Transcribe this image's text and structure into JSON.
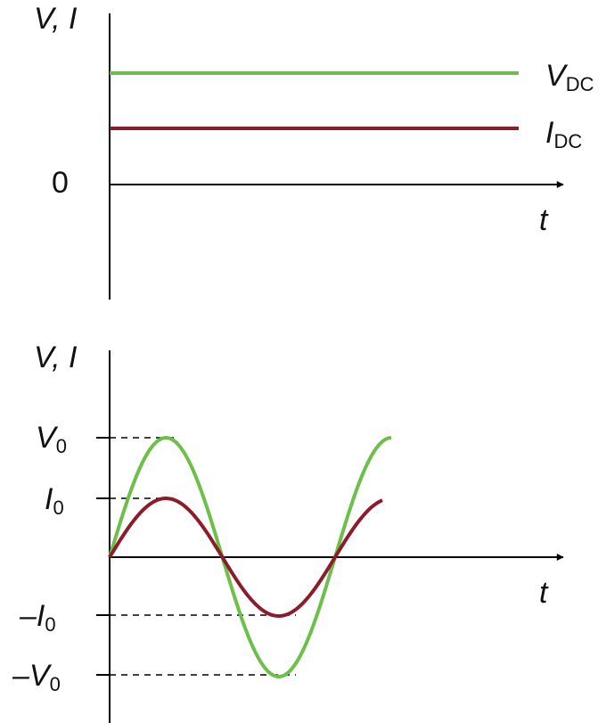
{
  "top": {
    "axis_label": "V, I",
    "v_dc": {
      "main": "V",
      "sub": "DC"
    },
    "i_dc": {
      "main": "I",
      "sub": "DC"
    },
    "zero": "0",
    "time": "t"
  },
  "bottom": {
    "axis_label": "V, I",
    "v0": {
      "main": "V",
      "sub": "0"
    },
    "i0": {
      "main": "I",
      "sub": "0"
    },
    "neg_i0": {
      "main": "–I",
      "sub": "0"
    },
    "neg_v0": {
      "main": "–V",
      "sub": "0"
    },
    "time": "t"
  }
}
